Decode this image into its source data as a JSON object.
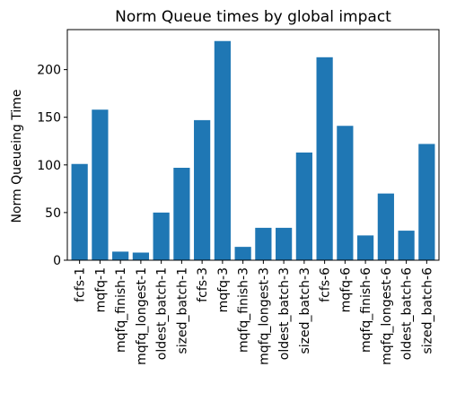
{
  "chart_data": {
    "type": "bar",
    "title": "Norm Queue times by global impact",
    "xlabel": "",
    "ylabel": "Norm Queueing Time",
    "categories": [
      "fcfs-1",
      "mqfq-1",
      "mqfq_finish-1",
      "mqfq_longest-1",
      "oldest_batch-1",
      "sized_batch-1",
      "fcfs-3",
      "mqfq-3",
      "mqfq_finish-3",
      "mqfq_longest-3",
      "oldest_batch-3",
      "sized_batch-3",
      "fcfs-6",
      "mqfq-6",
      "mqfq_finish-6",
      "mqfq_longest-6",
      "oldest_batch-6",
      "sized_batch-6"
    ],
    "values": [
      101,
      158,
      9,
      8,
      50,
      97,
      147,
      230,
      14,
      34,
      34,
      113,
      213,
      141,
      26,
      70,
      31,
      122
    ],
    "ylim": [
      0,
      242
    ],
    "yticks": [
      0,
      50,
      100,
      150,
      200
    ],
    "grid": false,
    "bar_color": "#1f77b4"
  }
}
